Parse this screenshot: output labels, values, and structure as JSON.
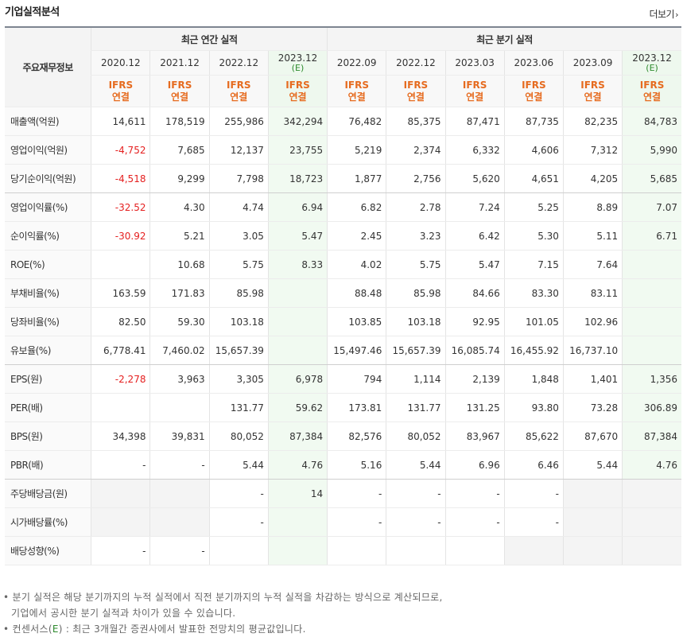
{
  "header": {
    "title": "기업실적분석",
    "more_label": "더보기",
    "more_icon": "chevron-right-icon"
  },
  "table": {
    "label_header": "주요재무정보",
    "annual_group": "최근 연간 실적",
    "quarter_group": "최근 분기 실적",
    "periods": [
      {
        "date": "2020.12",
        "estimate": ""
      },
      {
        "date": "2021.12",
        "estimate": ""
      },
      {
        "date": "2022.12",
        "estimate": ""
      },
      {
        "date": "2023.12",
        "estimate": "(E)"
      },
      {
        "date": "2022.09",
        "estimate": ""
      },
      {
        "date": "2022.12",
        "estimate": ""
      },
      {
        "date": "2023.03",
        "estimate": ""
      },
      {
        "date": "2023.06",
        "estimate": ""
      },
      {
        "date": "2023.09",
        "estimate": ""
      },
      {
        "date": "2023.12",
        "estimate": "(E)"
      }
    ],
    "basis": {
      "line1": "IFRS",
      "line2": "연결"
    },
    "rows": [
      {
        "label": "매출액(억원)",
        "values": [
          "14,611",
          "178,519",
          "255,986",
          "342,294",
          "76,482",
          "85,375",
          "87,471",
          "87,735",
          "82,235",
          "84,783"
        ]
      },
      {
        "label": "영업이익(억원)",
        "values": [
          "-4,752",
          "7,685",
          "12,137",
          "23,755",
          "5,219",
          "2,374",
          "6,332",
          "4,606",
          "7,312",
          "5,990"
        ]
      },
      {
        "label": "당기순이익(억원)",
        "values": [
          "-4,518",
          "9,299",
          "7,798",
          "18,723",
          "1,877",
          "2,756",
          "5,620",
          "4,651",
          "4,205",
          "5,685"
        ]
      },
      {
        "label": "영업이익률(%)",
        "values": [
          "-32.52",
          "4.30",
          "4.74",
          "6.94",
          "6.82",
          "2.78",
          "7.24",
          "5.25",
          "8.89",
          "7.07"
        ]
      },
      {
        "label": "순이익률(%)",
        "values": [
          "-30.92",
          "5.21",
          "3.05",
          "5.47",
          "2.45",
          "3.23",
          "6.42",
          "5.30",
          "5.11",
          "6.71"
        ]
      },
      {
        "label": "ROE(%)",
        "values": [
          "",
          "10.68",
          "5.75",
          "8.33",
          "4.02",
          "5.75",
          "5.47",
          "7.15",
          "7.64",
          ""
        ]
      },
      {
        "label": "부채비율(%)",
        "values": [
          "163.59",
          "171.83",
          "85.98",
          "",
          "88.48",
          "85.98",
          "84.66",
          "83.30",
          "83.11",
          ""
        ]
      },
      {
        "label": "당좌비율(%)",
        "values": [
          "82.50",
          "59.30",
          "103.18",
          "",
          "103.85",
          "103.18",
          "92.95",
          "101.05",
          "102.96",
          ""
        ]
      },
      {
        "label": "유보율(%)",
        "values": [
          "6,778.41",
          "7,460.02",
          "15,657.39",
          "",
          "15,497.46",
          "15,657.39",
          "16,085.74",
          "16,455.92",
          "16,737.10",
          ""
        ]
      },
      {
        "label": "EPS(원)",
        "values": [
          "-2,278",
          "3,963",
          "3,305",
          "6,978",
          "794",
          "1,114",
          "2,139",
          "1,848",
          "1,401",
          "1,356"
        ]
      },
      {
        "label": "PER(배)",
        "values": [
          "",
          "",
          "131.77",
          "59.62",
          "173.81",
          "131.77",
          "131.25",
          "93.80",
          "73.28",
          "306.89"
        ]
      },
      {
        "label": "BPS(원)",
        "values": [
          "34,398",
          "39,831",
          "80,052",
          "87,384",
          "82,576",
          "80,052",
          "83,967",
          "85,622",
          "87,670",
          "87,384"
        ]
      },
      {
        "label": "PBR(배)",
        "values": [
          "-",
          "-",
          "5.44",
          "4.76",
          "5.16",
          "5.44",
          "6.96",
          "6.46",
          "5.44",
          "4.76"
        ]
      },
      {
        "label": "주당배당금(원)",
        "values": [
          "",
          "",
          "-",
          "14",
          "-",
          "-",
          "-",
          "-",
          "",
          ""
        ]
      },
      {
        "label": "시가배당률(%)",
        "values": [
          "",
          "",
          "-",
          "",
          "-",
          "-",
          "-",
          "-",
          "",
          ""
        ]
      },
      {
        "label": "배당성향(%)",
        "values": [
          "-",
          "-",
          "",
          "",
          "",
          "",
          "",
          "",
          "",
          ""
        ]
      }
    ]
  },
  "notes": {
    "line1": "분기 실적은 해당 분기까지의 누적 실적에서 직전 분기까지의 누적 실적을 차감하는 방식으로 계산되므로,",
    "line2": "기업에서 공시한 분기 실적과 차이가 있을 수 있습니다.",
    "line3_prefix": "컨센서스(",
    "line3_e": "E",
    "line3_suffix": ") : 최근 3개월간 증권사에서 발표한 전망치의 평균값입니다."
  },
  "colors": {
    "negative": "#e51f1f",
    "basis": "#e66b1f",
    "estimate": "#2e8b2e",
    "consensus_bg": "#f1faf1"
  }
}
